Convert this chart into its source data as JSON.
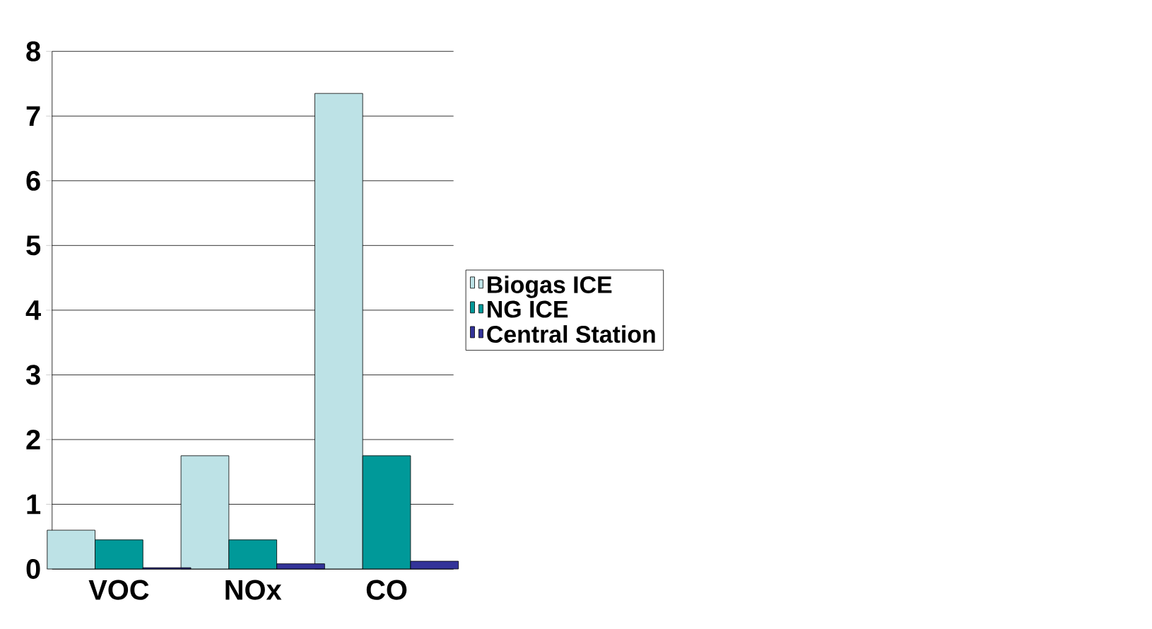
{
  "chart_data": {
    "type": "bar",
    "categories": [
      "VOC",
      "NOx",
      "CO"
    ],
    "series": [
      {
        "name": "Biogas ICE",
        "color": "#bde2e6",
        "values": [
          0.6,
          1.75,
          7.35
        ]
      },
      {
        "name": "NG ICE",
        "color": "#009999",
        "values": [
          0.45,
          0.45,
          1.75
        ]
      },
      {
        "name": "Central Station",
        "color": "#333399",
        "values": [
          0.02,
          0.08,
          0.12
        ]
      }
    ],
    "ylim": [
      0,
      8
    ],
    "yticks": [
      0,
      1,
      2,
      3,
      4,
      5,
      6,
      7,
      8
    ],
    "grid": "y",
    "legend": "right"
  }
}
